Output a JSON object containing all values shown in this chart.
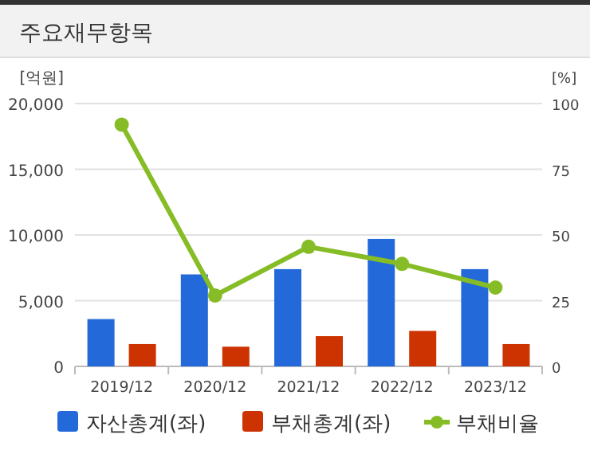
{
  "chart_data": {
    "type": "bar",
    "title": "주요재무항목",
    "ylabel": "[억원]",
    "y2label": "[%]",
    "categories": [
      "2019/12",
      "2020/12",
      "2021/12",
      "2022/12",
      "2023/12"
    ],
    "series": [
      {
        "name": "자산총계(좌)",
        "color": "#2469d9",
        "values": [
          3600,
          7000,
          7400,
          9700,
          7400
        ]
      },
      {
        "name": "부채총계(좌)",
        "color": "#cc3300",
        "values": [
          1700,
          1500,
          2300,
          2700,
          1700
        ]
      },
      {
        "name": "부채비율",
        "type": "line",
        "axis": "y2",
        "color": "#86bc25",
        "values": [
          92,
          27,
          45.5,
          39,
          30
        ],
        "marker": "circle"
      }
    ],
    "ylim": [
      0,
      20000
    ],
    "yticks": [
      {
        "value": 0,
        "label": "0"
      },
      {
        "value": 5000,
        "label": "5,000"
      },
      {
        "value": 10000,
        "label": "10,000"
      },
      {
        "value": 15000,
        "label": "15,000"
      },
      {
        "value": 20000,
        "label": "20,000"
      }
    ],
    "y2lim": [
      0,
      100
    ],
    "y2ticks": [
      0,
      25,
      50,
      75,
      100
    ],
    "grid": "y",
    "legend": "bottom"
  }
}
